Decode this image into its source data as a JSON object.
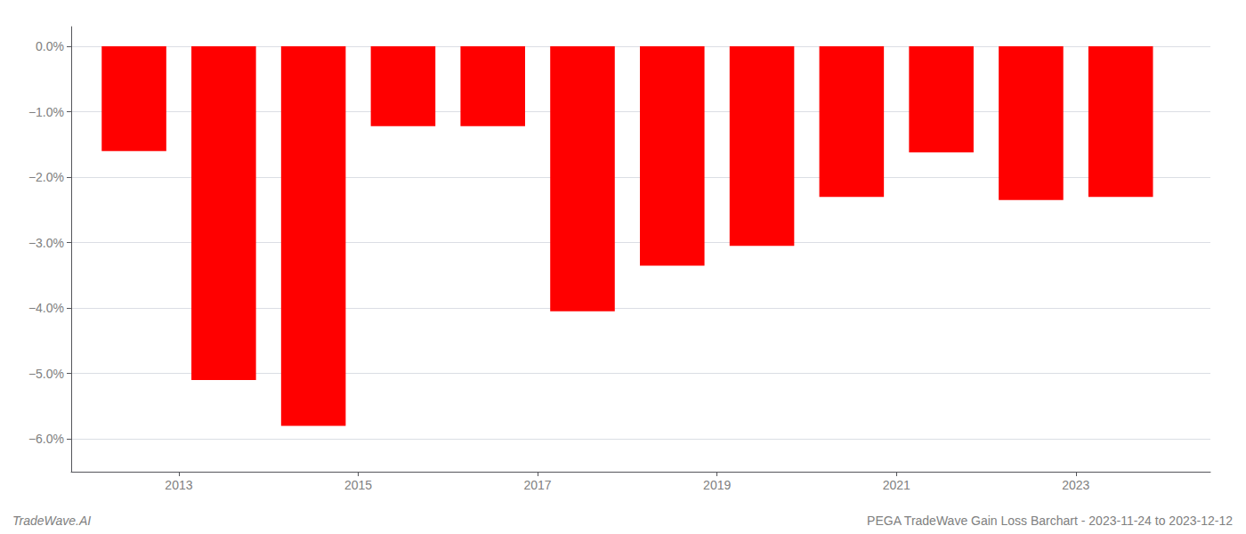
{
  "chart_data": {
    "type": "bar",
    "x": [
      2012.5,
      2013.5,
      2014.5,
      2015.5,
      2016.5,
      2017.5,
      2018.5,
      2019.5,
      2020.5,
      2021.5,
      2022.5,
      2023.5
    ],
    "values": [
      -1.6,
      -5.1,
      -5.8,
      -1.22,
      -1.22,
      -4.05,
      -3.35,
      -3.05,
      -2.3,
      -1.62,
      -2.35,
      -2.3
    ],
    "color": "#ff0000",
    "xlim": [
      2011.8,
      2024.5
    ],
    "xticks": [
      2013,
      2015,
      2017,
      2019,
      2021,
      2023
    ],
    "ylim": [
      -6.5,
      0.3
    ],
    "yticks": [
      {
        "value": 0.0,
        "label": "0.0%"
      },
      {
        "value": -1.0,
        "label": "−1.0%"
      },
      {
        "value": -2.0,
        "label": "−2.0%"
      },
      {
        "value": -3.0,
        "label": "−3.0%"
      },
      {
        "value": -4.0,
        "label": "−4.0%"
      },
      {
        "value": -5.0,
        "label": "−5.0%"
      },
      {
        "value": -6.0,
        "label": "−6.0%"
      }
    ],
    "grid": true,
    "annotations": [
      "TradeWave.AI",
      "PEGA TradeWave Gain Loss Barchart - 2023-11-24 to 2023-12-12"
    ]
  }
}
